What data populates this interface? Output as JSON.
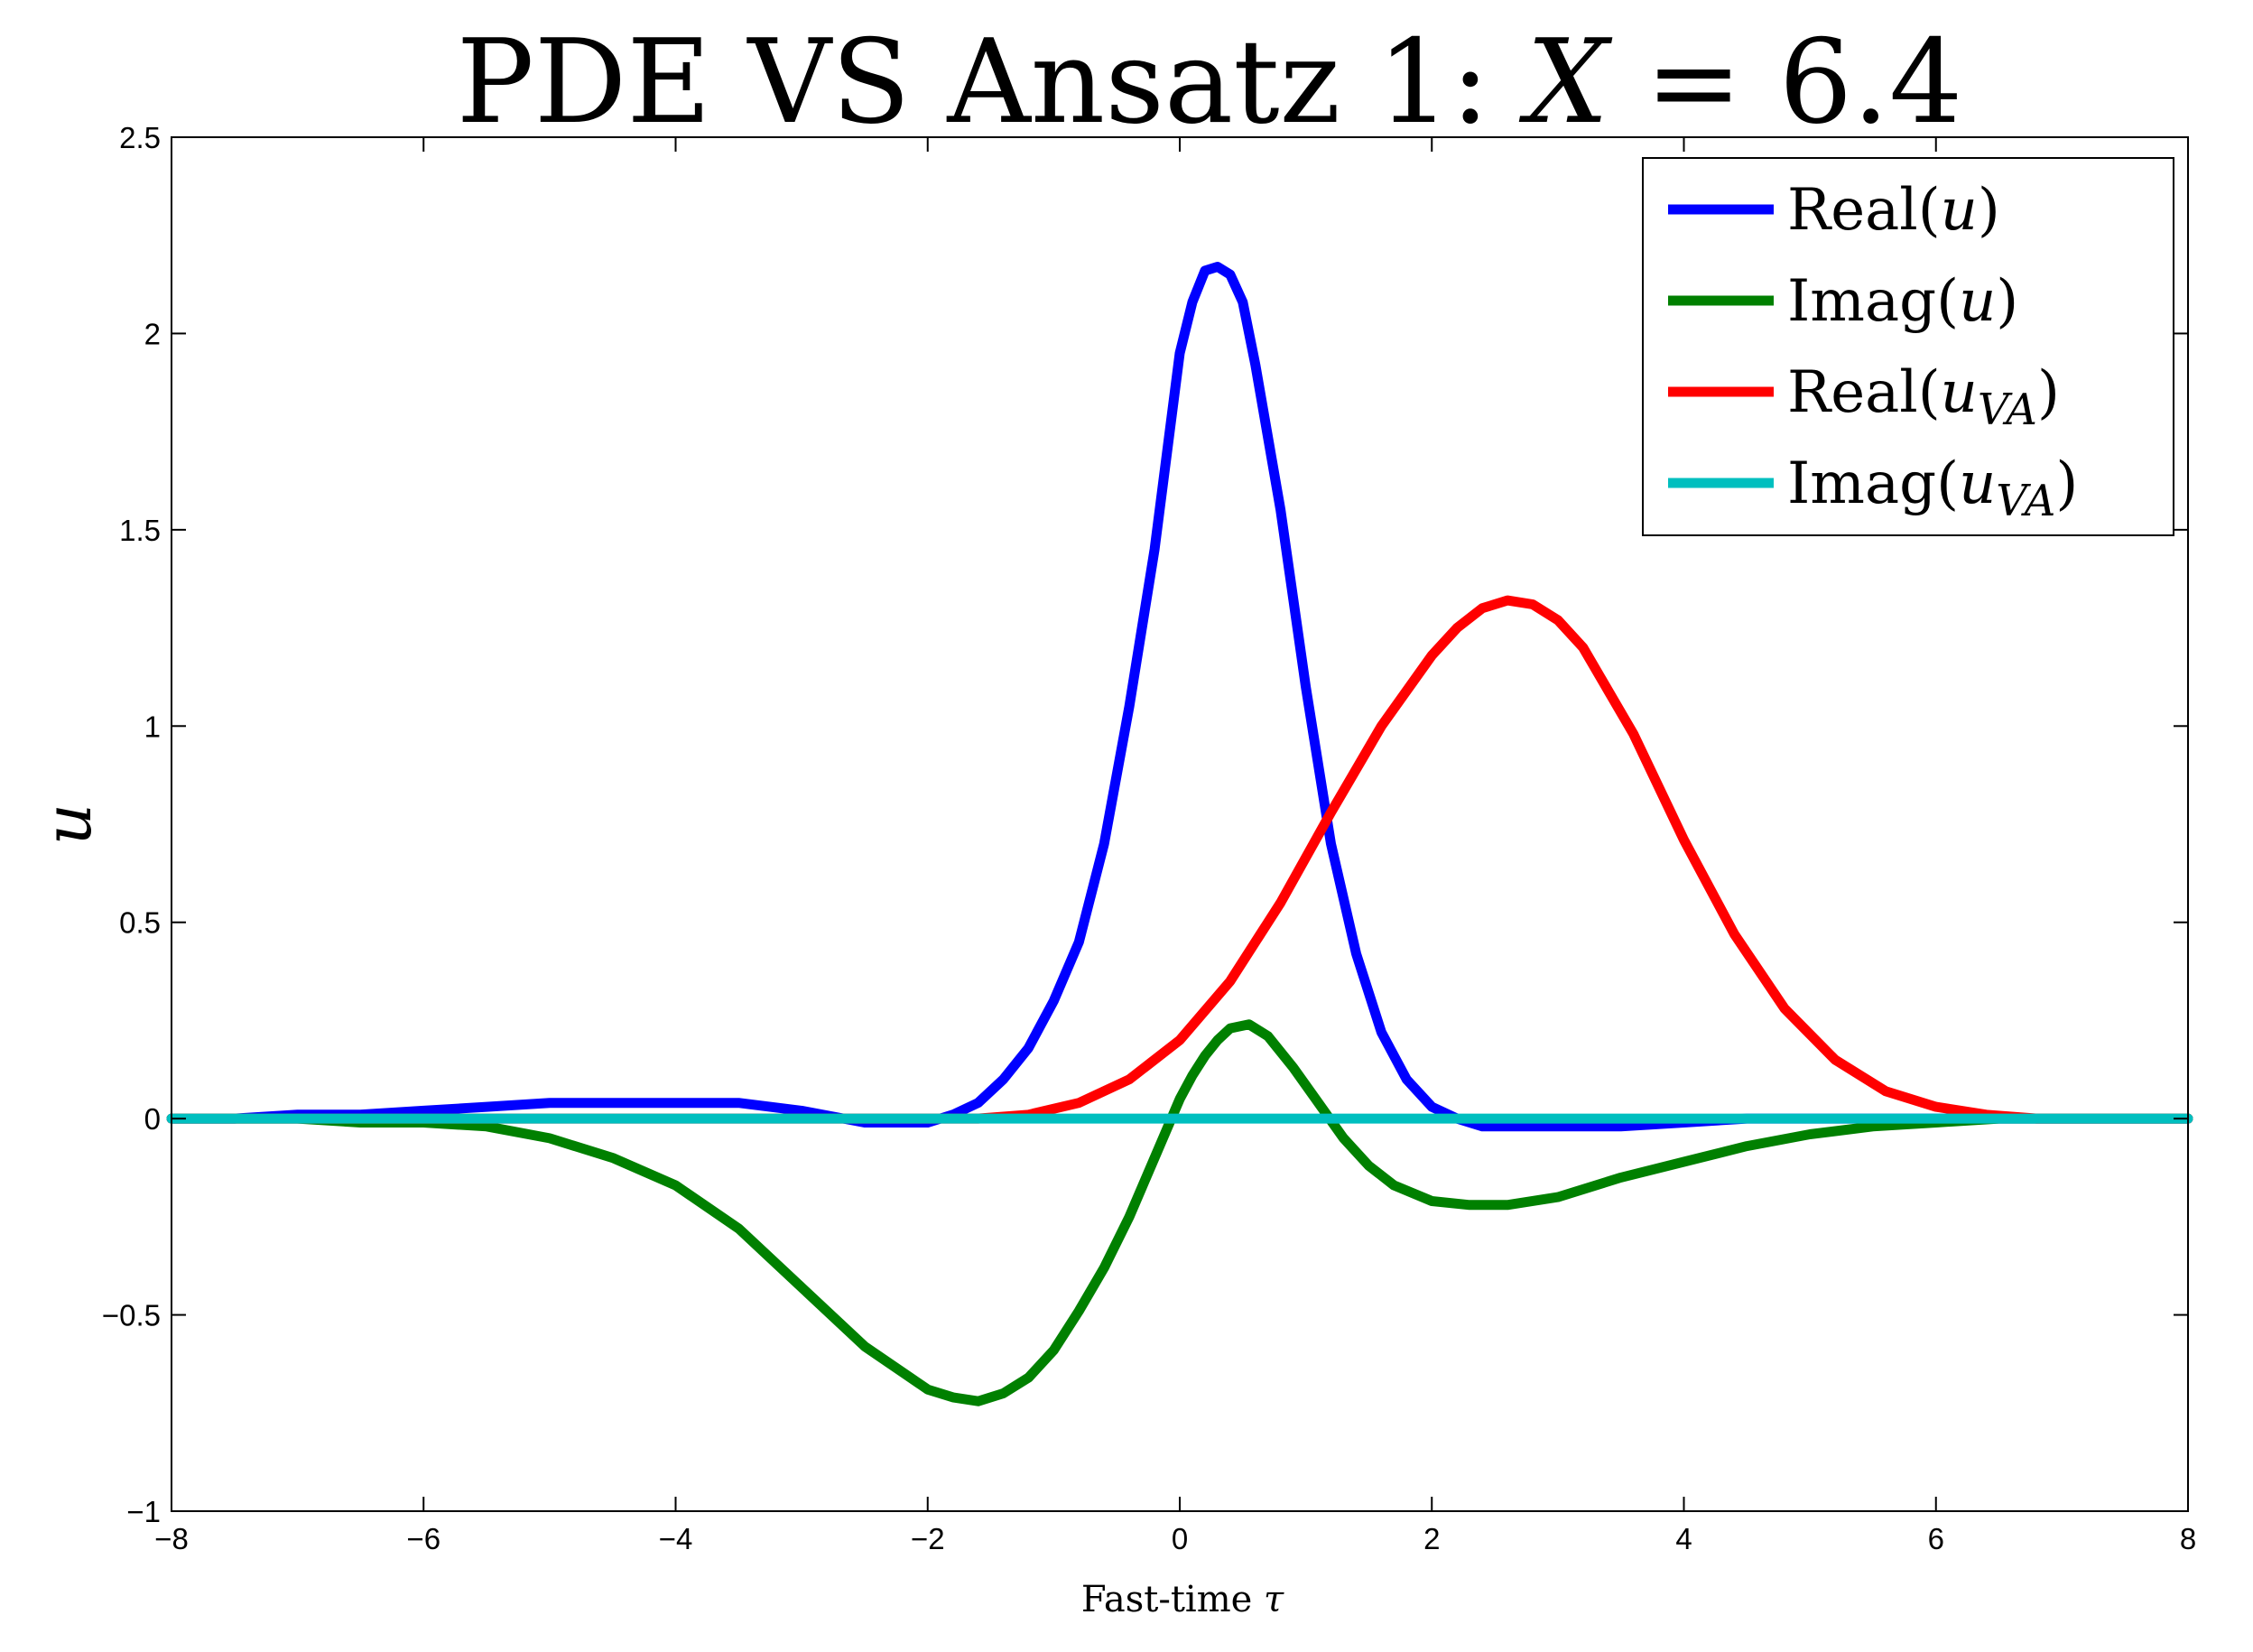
{
  "chart_data": {
    "type": "line",
    "title": {
      "prefix": "PDE VS Ansatz 1: ",
      "variable": "X",
      "suffix": " = 6.4"
    },
    "xlabel": {
      "text": "Fast-time ",
      "symbol": "τ"
    },
    "ylabel": "u",
    "xlim": [
      -8,
      8
    ],
    "ylim": [
      -1,
      2.5
    ],
    "xticks": [
      -8,
      -6,
      -4,
      -2,
      0,
      2,
      4,
      6,
      8
    ],
    "xtick_labels": [
      "−8",
      "−6",
      "−4",
      "−2",
      "0",
      "2",
      "4",
      "6",
      "8"
    ],
    "yticks": [
      -1,
      -0.5,
      0,
      0.5,
      1,
      1.5,
      2,
      2.5
    ],
    "ytick_labels": [
      "−1",
      "−0.5",
      "0",
      "0.5",
      "1",
      "1.5",
      "2",
      "2.5"
    ],
    "grid": false,
    "legend_position": "top-right",
    "series": [
      {
        "name": "Real(u)",
        "legend": {
          "base": "Real(",
          "var": "u",
          "sub": "",
          "close": ")"
        },
        "color": "#0000ff",
        "x": [
          -8,
          -7.5,
          -7,
          -6.5,
          -6,
          -5.5,
          -5,
          -4.5,
          -4,
          -3.5,
          -3,
          -2.5,
          -2,
          -1.8,
          -1.6,
          -1.4,
          -1.2,
          -1.0,
          -0.8,
          -0.6,
          -0.4,
          -0.2,
          0.0,
          0.1,
          0.2,
          0.3,
          0.4,
          0.5,
          0.6,
          0.8,
          1.0,
          1.2,
          1.4,
          1.6,
          1.8,
          2.0,
          2.2,
          2.4,
          2.7,
          3.0,
          3.5,
          4.0,
          4.5,
          5.0,
          6.0,
          7.0,
          8.0
        ],
        "y": [
          0.0,
          0.0,
          0.01,
          0.01,
          0.02,
          0.03,
          0.04,
          0.04,
          0.04,
          0.04,
          0.02,
          -0.01,
          -0.01,
          0.01,
          0.04,
          0.1,
          0.18,
          0.3,
          0.45,
          0.7,
          1.05,
          1.45,
          1.95,
          2.08,
          2.16,
          2.17,
          2.15,
          2.08,
          1.92,
          1.55,
          1.1,
          0.7,
          0.42,
          0.22,
          0.1,
          0.03,
          0.0,
          -0.02,
          -0.02,
          -0.02,
          -0.02,
          -0.01,
          0.0,
          0.0,
          0.0,
          0.0,
          0.0
        ]
      },
      {
        "name": "Imag(u)",
        "legend": {
          "base": "Imag(",
          "var": "u",
          "sub": "",
          "close": ")"
        },
        "color": "#008000",
        "x": [
          -8,
          -7,
          -6.5,
          -6,
          -5.5,
          -5,
          -4.5,
          -4,
          -3.5,
          -3,
          -2.5,
          -2,
          -1.8,
          -1.6,
          -1.4,
          -1.2,
          -1.0,
          -0.8,
          -0.6,
          -0.4,
          -0.2,
          0.0,
          0.1,
          0.2,
          0.3,
          0.4,
          0.55,
          0.7,
          0.9,
          1.1,
          1.3,
          1.5,
          1.7,
          2.0,
          2.3,
          2.6,
          3.0,
          3.5,
          4.0,
          4.5,
          5.0,
          5.5,
          6.0,
          6.5,
          7.0,
          8.0
        ],
        "y": [
          0.0,
          0.0,
          -0.01,
          -0.01,
          -0.02,
          -0.05,
          -0.1,
          -0.17,
          -0.28,
          -0.43,
          -0.58,
          -0.69,
          -0.71,
          -0.72,
          -0.7,
          -0.66,
          -0.59,
          -0.49,
          -0.38,
          -0.25,
          -0.1,
          0.05,
          0.11,
          0.16,
          0.2,
          0.23,
          0.24,
          0.21,
          0.13,
          0.04,
          -0.05,
          -0.12,
          -0.17,
          -0.21,
          -0.22,
          -0.22,
          -0.2,
          -0.15,
          -0.11,
          -0.07,
          -0.04,
          -0.02,
          -0.01,
          0.0,
          0.0,
          0.0
        ]
      },
      {
        "name": "Real(u_VA)",
        "legend": {
          "base": "Real(",
          "var": "u",
          "sub": "VA",
          "close": ")"
        },
        "color": "#ff0000",
        "x": [
          -8,
          -2.0,
          -1.6,
          -1.2,
          -0.8,
          -0.4,
          0.0,
          0.4,
          0.8,
          1.2,
          1.6,
          2.0,
          2.2,
          2.4,
          2.6,
          2.8,
          3.0,
          3.2,
          3.6,
          4.0,
          4.4,
          4.8,
          5.2,
          5.6,
          6.0,
          6.4,
          6.8,
          8.0
        ],
        "y": [
          0.0,
          0.0,
          0.0,
          0.01,
          0.04,
          0.1,
          0.2,
          0.35,
          0.55,
          0.78,
          1.0,
          1.18,
          1.25,
          1.3,
          1.32,
          1.31,
          1.27,
          1.2,
          0.98,
          0.71,
          0.47,
          0.28,
          0.15,
          0.07,
          0.03,
          0.01,
          0.0,
          0.0
        ]
      },
      {
        "name": "Imag(u_VA)",
        "legend": {
          "base": "Imag(",
          "var": "u",
          "sub": "VA",
          "close": ")"
        },
        "color": "#00bfbf",
        "x": [
          -8,
          8
        ],
        "y": [
          0.0,
          0.0
        ]
      }
    ]
  }
}
